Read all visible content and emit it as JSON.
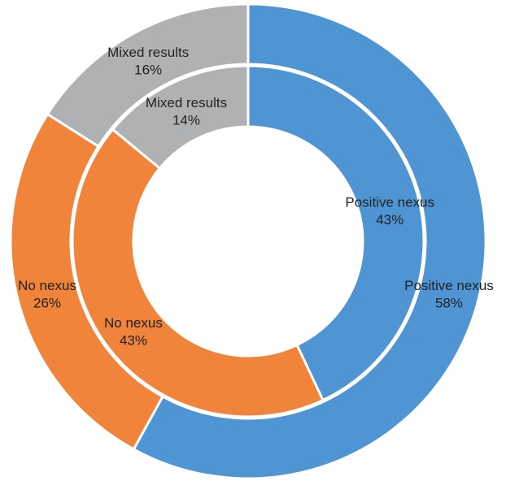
{
  "chart_data": [
    {
      "type": "donut",
      "ring": "outer",
      "categories": [
        "Positive nexus",
        "No nexus",
        "Mixed results"
      ],
      "values": [
        58,
        26,
        16
      ],
      "value_labels": [
        "58%",
        "26%",
        "16%"
      ],
      "colors": [
        "#4f94d3",
        "#f0843a",
        "#b0b1b3"
      ]
    },
    {
      "type": "donut",
      "ring": "inner",
      "categories": [
        "Positive nexus",
        "No nexus",
        "Mixed results"
      ],
      "values": [
        43,
        43,
        14
      ],
      "value_labels": [
        "43%",
        "43%",
        "14%"
      ],
      "colors": [
        "#4f94d3",
        "#f0843a",
        "#b0b1b3"
      ]
    }
  ]
}
